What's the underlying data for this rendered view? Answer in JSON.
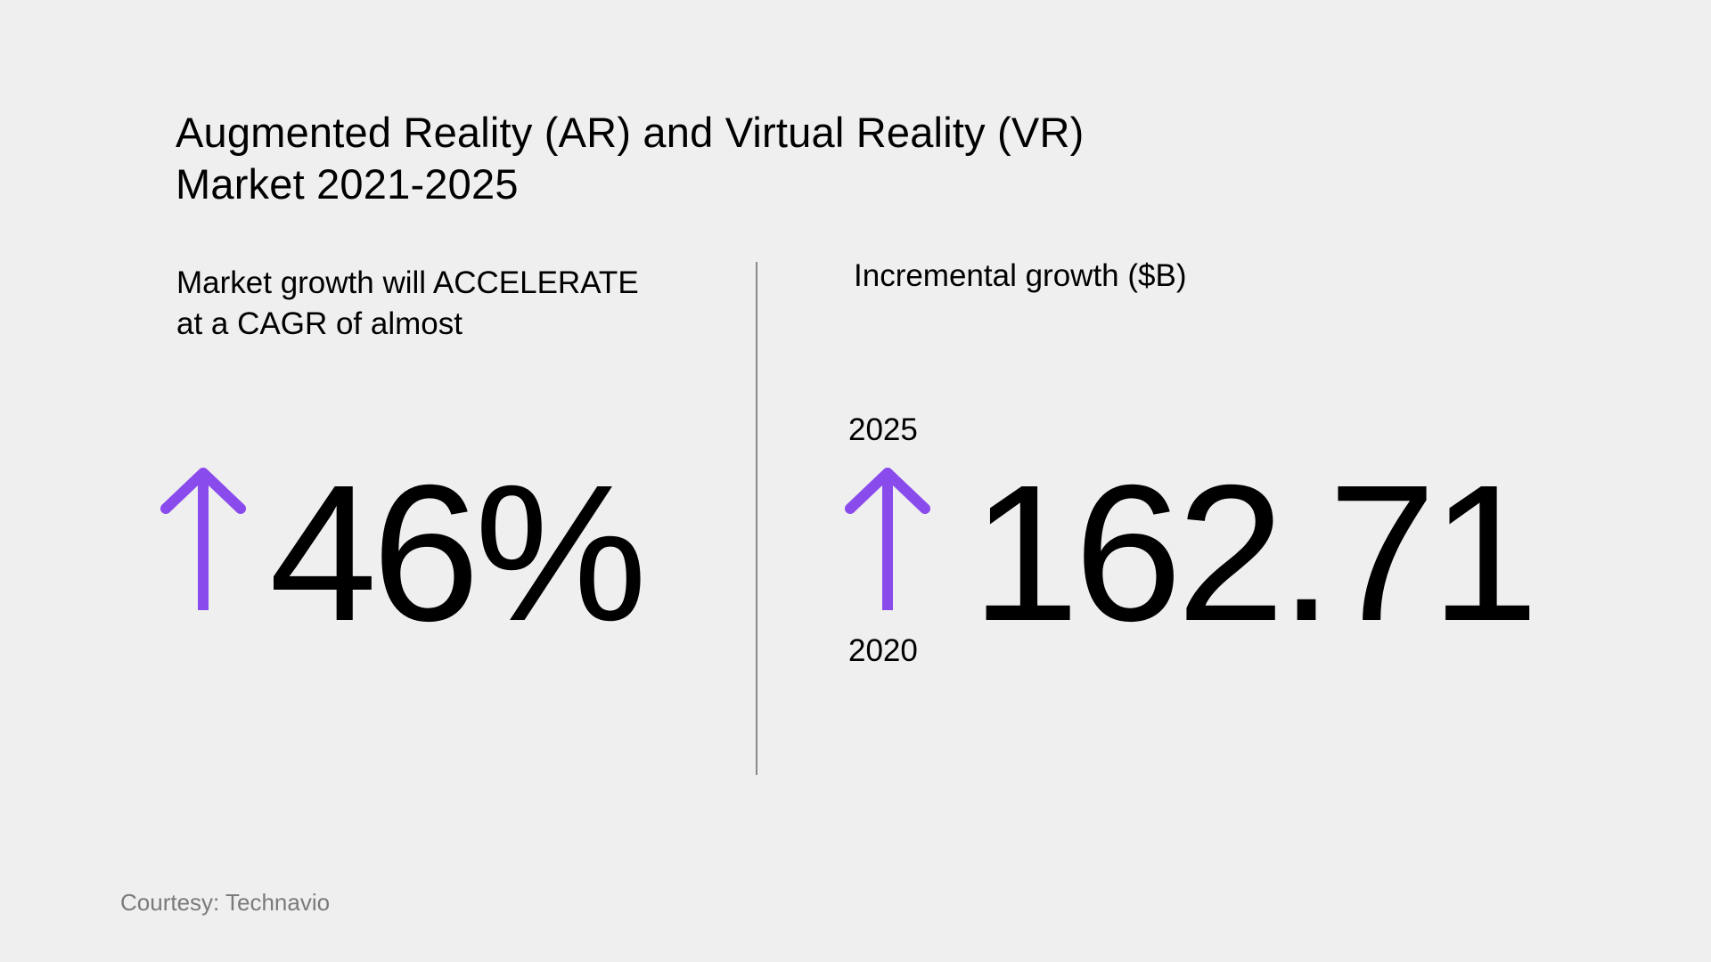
{
  "title": {
    "line1": "Augmented Reality (AR) and Virtual Reality (VR)",
    "line2": "Market 2021-2025"
  },
  "left": {
    "subtitle_line1": "Market growth will ACCELERATE",
    "subtitle_line2": "at a CAGR of almost",
    "value": "46%",
    "arrow_icon": "arrow-up-icon"
  },
  "right": {
    "subtitle": "Incremental growth ($B)",
    "year_end": "2025",
    "year_start": "2020",
    "value": "162.71",
    "arrow_icon": "arrow-up-icon"
  },
  "footer": {
    "courtesy": "Courtesy: Technavio"
  },
  "colors": {
    "background": "#efefef",
    "accent": "#8a4bed",
    "text": "#000000",
    "muted": "#7a7a7a",
    "divider": "#8a8a8a"
  }
}
